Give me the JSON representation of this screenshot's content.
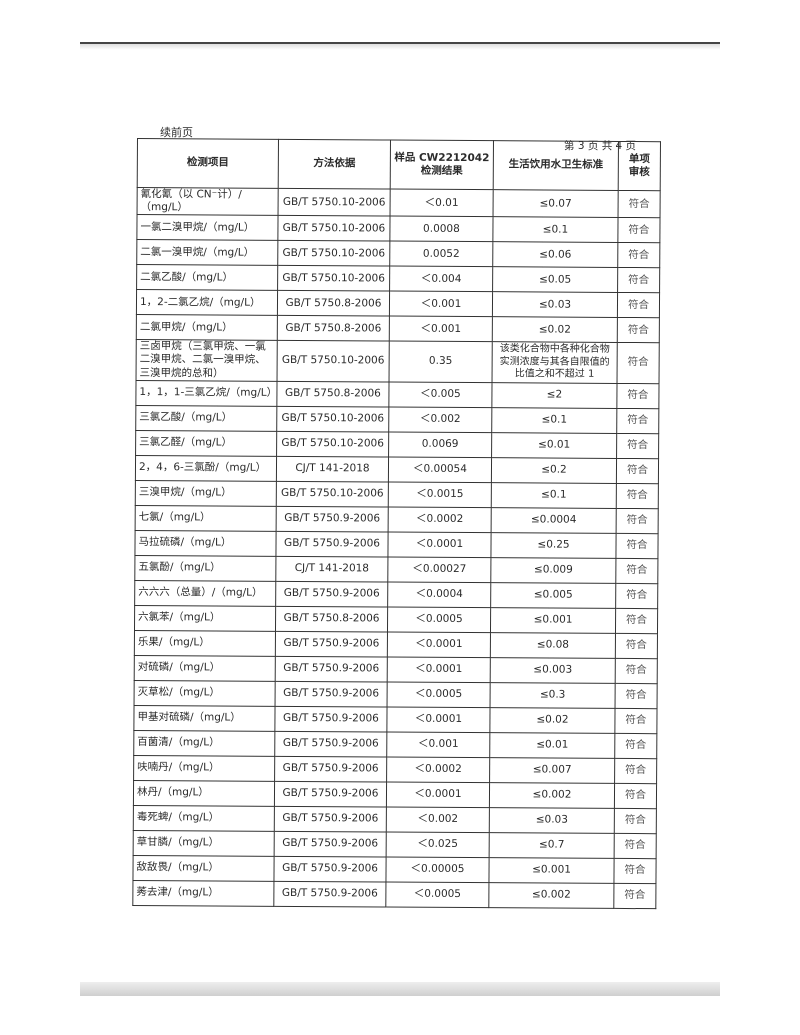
{
  "header": {
    "continued": "续前页",
    "page_info": "第 3 页  共 4 页"
  },
  "columns": [
    "检测项目",
    "方法依据",
    "样品 CW2212042 检测结果",
    "生活饮用水卫生标准",
    "单项 审核"
  ],
  "rows": [
    [
      "氰化氰（以 CN⁻计）/（mg/L）",
      "GB/T 5750.10-2006",
      "＜0.01",
      "≤0.07",
      "符合"
    ],
    [
      "一氯二溴甲烷/（mg/L）",
      "GB/T 5750.10-2006",
      "0.0008",
      "≤0.1",
      "符合"
    ],
    [
      "二氯一溴甲烷/（mg/L）",
      "GB/T 5750.10-2006",
      "0.0052",
      "≤0.06",
      "符合"
    ],
    [
      "二氯乙酸/（mg/L）",
      "GB/T 5750.10-2006",
      "＜0.004",
      "≤0.05",
      "符合"
    ],
    [
      "1，2-二氯乙烷/（mg/L）",
      "GB/T 5750.8-2006",
      "＜0.001",
      "≤0.03",
      "符合"
    ],
    [
      "二氯甲烷/（mg/L）",
      "GB/T 5750.8-2006",
      "＜0.001",
      "≤0.02",
      "符合"
    ],
    [
      "三卤甲烷（三氯甲烷、一氯二溴甲烷、二氯一溴甲烷、三溴甲烷的总和）",
      "GB/T 5750.10-2006",
      "0.35",
      "该类化合物中各种化合物实测浓度与其各自限值的比值之和不超过 1",
      "符合"
    ],
    [
      "1，1，1-三氯乙烷/（mg/L）",
      "GB/T 5750.8-2006",
      "＜0.005",
      "≤2",
      "符合"
    ],
    [
      "三氯乙酸/（mg/L）",
      "GB/T 5750.10-2006",
      "＜0.002",
      "≤0.1",
      "符合"
    ],
    [
      "三氯乙醛/（mg/L）",
      "GB/T 5750.10-2006",
      "0.0069",
      "≤0.01",
      "符合"
    ],
    [
      "2，4，6-三氯酚/（mg/L）",
      "CJ/T 141-2018",
      "＜0.00054",
      "≤0.2",
      "符合"
    ],
    [
      "三溴甲烷/（mg/L）",
      "GB/T 5750.10-2006",
      "＜0.0015",
      "≤0.1",
      "符合"
    ],
    [
      "七氯/（mg/L）",
      "GB/T 5750.9-2006",
      "＜0.0002",
      "≤0.0004",
      "符合"
    ],
    [
      "马拉硫磷/（mg/L）",
      "GB/T 5750.9-2006",
      "＜0.0001",
      "≤0.25",
      "符合"
    ],
    [
      "五氯酚/（mg/L）",
      "CJ/T 141-2018",
      "＜0.00027",
      "≤0.009",
      "符合"
    ],
    [
      "六六六（总量）/（mg/L）",
      "GB/T 5750.9-2006",
      "＜0.0004",
      "≤0.005",
      "符合"
    ],
    [
      "六氯苯/（mg/L）",
      "GB/T 5750.8-2006",
      "＜0.0005",
      "≤0.001",
      "符合"
    ],
    [
      "乐果/（mg/L）",
      "GB/T 5750.9-2006",
      "＜0.0001",
      "≤0.08",
      "符合"
    ],
    [
      "对硫磷/（mg/L）",
      "GB/T 5750.9-2006",
      "＜0.0001",
      "≤0.003",
      "符合"
    ],
    [
      "灭草松/（mg/L）",
      "GB/T 5750.9-2006",
      "＜0.0005",
      "≤0.3",
      "符合"
    ],
    [
      "甲基对硫磷/（mg/L）",
      "GB/T 5750.9-2006",
      "＜0.0001",
      "≤0.02",
      "符合"
    ],
    [
      "百菌清/（mg/L）",
      "GB/T 5750.9-2006",
      "＜0.001",
      "≤0.01",
      "符合"
    ],
    [
      "呋喃丹/（mg/L）",
      "GB/T 5750.9-2006",
      "＜0.0002",
      "≤0.007",
      "符合"
    ],
    [
      "林丹/（mg/L）",
      "GB/T 5750.9-2006",
      "＜0.0001",
      "≤0.002",
      "符合"
    ],
    [
      "毒死蜱/（mg/L）",
      "GB/T 5750.9-2006",
      "＜0.002",
      "≤0.03",
      "符合"
    ],
    [
      "草甘膦/（mg/L）",
      "GB/T 5750.9-2006",
      "＜0.025",
      "≤0.7",
      "符合"
    ],
    [
      "敌敌畏/（mg/L）",
      "GB/T 5750.9-2006",
      "＜0.00005",
      "≤0.001",
      "符合"
    ],
    [
      "莠去津/（mg/L）",
      "GB/T 5750.9-2006",
      "＜0.0005",
      "≤0.002",
      "符合"
    ]
  ]
}
